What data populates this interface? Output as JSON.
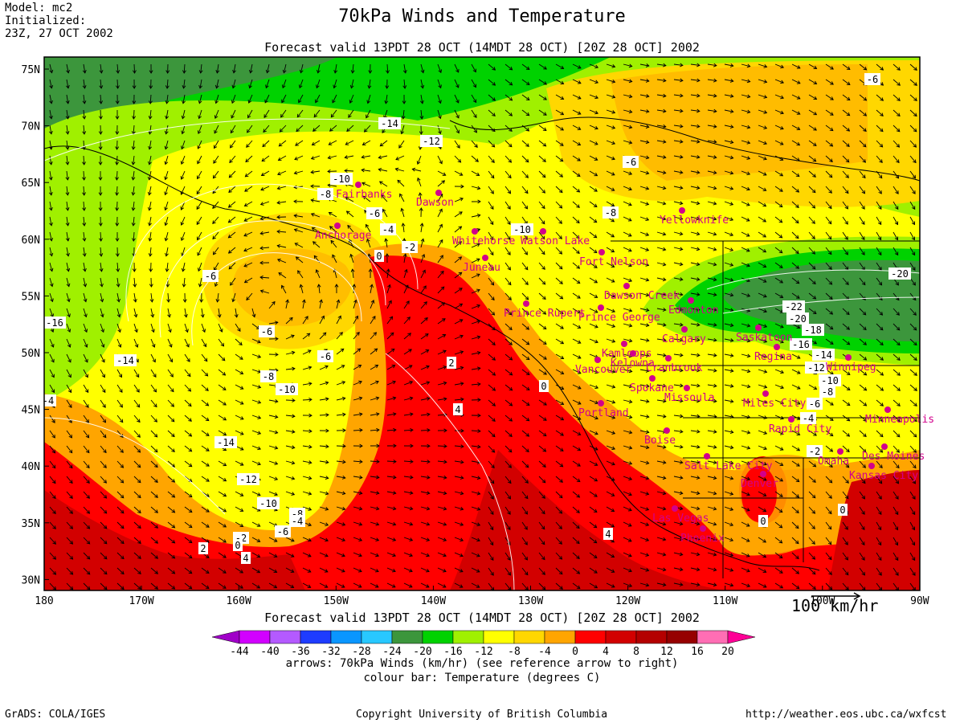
{
  "header": {
    "model_line": "Model: mc2",
    "init_label": "Initialized:",
    "init_time": "23Z, 27 OCT 2002",
    "title": "70kPa Winds and Temperature",
    "forecast_valid": "Forecast valid 13PDT 28 OCT (14MDT 28 OCT) [20Z 28 OCT] 2002"
  },
  "map": {
    "lat_labels": [
      "75N",
      "70N",
      "65N",
      "60N",
      "55N",
      "50N",
      "45N",
      "40N",
      "35N",
      "30N"
    ],
    "lon_labels": [
      "180",
      "170W",
      "160W",
      "150W",
      "140W",
      "130W",
      "120W",
      "110W",
      "100W",
      "90W"
    ],
    "reference_arrow_label": "100 km/hr",
    "contour_labels": [
      "-6",
      "-14",
      "-12",
      "-6",
      "-10",
      "-8",
      "-8",
      "-6",
      "-4",
      "-10",
      "-2",
      "0",
      "-6",
      "-6",
      "-16",
      "-6",
      "-14",
      "-8",
      "-10",
      "-4",
      "-14",
      "-12",
      "-10",
      "-8",
      "-6",
      "-4",
      "-2",
      "0",
      "2",
      "2",
      "4",
      "4",
      "4",
      "0",
      "0",
      "-20",
      "-22",
      "-20",
      "-18",
      "-16",
      "-14",
      "-12",
      "-10",
      "-8",
      "-6",
      "-4",
      "-2",
      "0"
    ],
    "cities": [
      "Fairbanks",
      "Anchorage",
      "Dawson",
      "Whitehorse",
      "Watson Lake",
      "Juneau",
      "Yellowknife",
      "Fort Nelson",
      "Dawson Creek",
      "Edmonton",
      "Prince George",
      "Prince Rupert",
      "Kamloops",
      "Calgary",
      "Saskatoon",
      "Cranbrook",
      "Regina",
      "Winnipeg",
      "Vancouver",
      "Kelowna",
      "Spokane",
      "Missoula",
      "Miles City",
      "Portland",
      "Boise",
      "Rapid City",
      "Minneapolis",
      "Des Moines",
      "Salt Lake City",
      "Omaha",
      "Denver",
      "Kansas City",
      "Las Vegas",
      "Phoenix"
    ]
  },
  "colorbar": {
    "ticks": [
      "-44",
      "-40",
      "-36",
      "-32",
      "-28",
      "-24",
      "-20",
      "-16",
      "-12",
      "-8",
      "-4",
      "0",
      "4",
      "8",
      "12",
      "16",
      "20"
    ],
    "colors": [
      "#a000c8",
      "#d200ff",
      "#b45aff",
      "#1e3cff",
      "#0a96ff",
      "#28c8ff",
      "#3c963c",
      "#00d200",
      "#a0f000",
      "#ffff00",
      "#ffd700",
      "#ffa500",
      "#ff0000",
      "#d20000",
      "#b40000",
      "#960000",
      "#ff6eb4",
      "#ff0096"
    ],
    "caption_arrows": "arrows: 70kPa Winds (km/hr) (see reference arrow to right)",
    "caption_colour": "colour bar: Temperature (degrees C)"
  },
  "footer": {
    "left": "GrADS: COLA/IGES",
    "center": "Copyright University of British Columbia",
    "right": "http://weather.eos.ubc.ca/wxfcst"
  }
}
